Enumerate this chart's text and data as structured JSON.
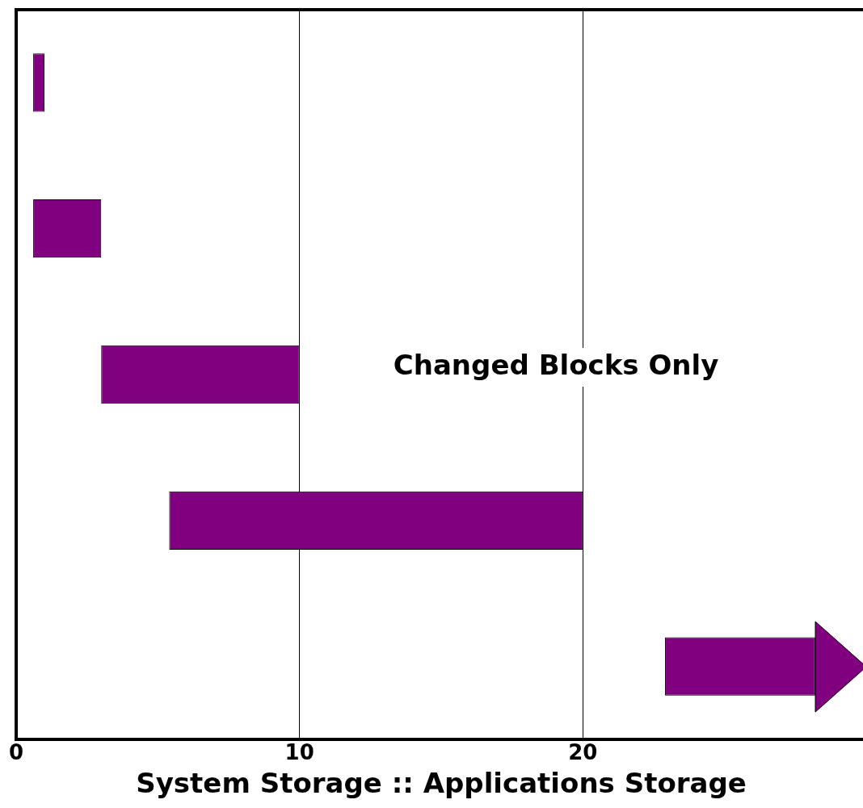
{
  "chart_data": {
    "type": "bar",
    "orientation": "horizontal",
    "xlabel": "System Storage :: Applications Storage",
    "categories": [
      null,
      null,
      null,
      null,
      null
    ],
    "base": [
      0.6,
      0.6,
      3,
      5.4,
      22.9
    ],
    "values": [
      0.4,
      2.4,
      7,
      14.6,
      5.3
    ],
    "color": "#800080",
    "xlim": [
      0,
      30
    ],
    "xticks": [
      0,
      10,
      20
    ],
    "grid": "x",
    "tick_labels": "x",
    "legend": false,
    "annotations": [
      "Changed Blocks Only"
    ]
  }
}
